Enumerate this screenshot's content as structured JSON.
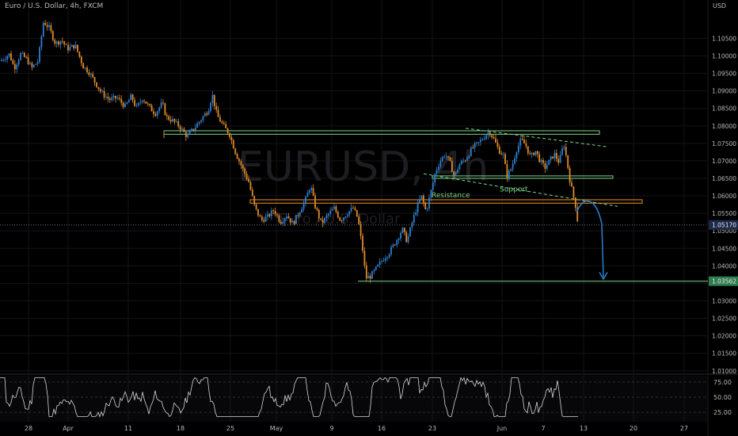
{
  "header": {
    "symbol_title": "Euro / U.S. Dollar, 4h, FXCM",
    "currency": "USD"
  },
  "chart_data": [
    {
      "type": "candlestick",
      "title": "Euro / U.S. Dollar, 4h, FXCM",
      "watermark": "EURUSD, 4h",
      "watermark_sub": "Euro / U.S. Dollar",
      "x_tick_labels": [
        "28",
        "Apr",
        "11",
        "18",
        "25",
        "May",
        "9",
        "16",
        "23",
        "Jun",
        "7",
        "13",
        "20",
        "27"
      ],
      "y_tick_labels": [
        "1.10500",
        "1.10000",
        "1.09500",
        "1.09000",
        "1.08500",
        "1.08000",
        "1.07500",
        "1.07000",
        "1.06500",
        "1.06000",
        "1.05500",
        "1.05000",
        "1.04500",
        "1.04000",
        "1.03500",
        "1.03000",
        "1.02500",
        "1.02000",
        "1.01500",
        "1.01000"
      ],
      "ylim": [
        1.0095,
        1.1103
      ],
      "up_color": "#2f7fd1",
      "down_color": "#e08b2a",
      "close_path": [
        [
          0,
          1.0985
        ],
        [
          12,
          1.1005
        ],
        [
          18,
          1.0965
        ],
        [
          26,
          1.1005
        ],
        [
          34,
          1.099
        ],
        [
          40,
          1.0965
        ],
        [
          48,
          1.0985
        ],
        [
          55,
          1.1098
        ],
        [
          62,
          1.108
        ],
        [
          70,
          1.1035
        ],
        [
          78,
          1.1045
        ],
        [
          85,
          1.102
        ],
        [
          95,
          1.103
        ],
        [
          105,
          1.097
        ],
        [
          112,
          1.0955
        ],
        [
          120,
          1.0925
        ],
        [
          128,
          1.0895
        ],
        [
          138,
          1.0875
        ],
        [
          148,
          1.088
        ],
        [
          158,
          1.0855
        ],
        [
          166,
          1.0885
        ],
        [
          172,
          1.085
        ],
        [
          180,
          1.088
        ],
        [
          188,
          1.0855
        ],
        [
          196,
          1.0835
        ],
        [
          205,
          1.0865
        ],
        [
          210,
          1.0825
        ],
        [
          218,
          1.0815
        ],
        [
          226,
          1.08
        ],
        [
          236,
          1.077
        ],
        [
          246,
          1.0795
        ],
        [
          256,
          1.0825
        ],
        [
          263,
          1.0845
        ],
        [
          268,
          1.089
        ],
        [
          274,
          1.083
        ],
        [
          282,
          1.08
        ],
        [
          290,
          1.0775
        ],
        [
          298,
          1.072
        ],
        [
          306,
          1.068
        ],
        [
          314,
          1.064
        ],
        [
          322,
          1.0565
        ],
        [
          330,
          1.053
        ],
        [
          338,
          1.054
        ],
        [
          346,
          1.056
        ],
        [
          354,
          1.0525
        ],
        [
          362,
          1.0545
        ],
        [
          370,
          1.052
        ],
        [
          378,
          1.0555
        ],
        [
          386,
          1.059
        ],
        [
          392,
          1.063
        ],
        [
          398,
          1.057
        ],
        [
          406,
          1.052
        ],
        [
          414,
          1.0545
        ],
        [
          422,
          1.0565
        ],
        [
          430,
          1.053
        ],
        [
          438,
          1.055
        ],
        [
          446,
          1.0565
        ],
        [
          452,
          1.0535
        ],
        [
          458,
          1.0445
        ],
        [
          462,
          1.0365
        ],
        [
          468,
          1.037
        ],
        [
          476,
          1.0395
        ],
        [
          484,
          1.042
        ],
        [
          492,
          1.044
        ],
        [
          500,
          1.047
        ],
        [
          508,
          1.0505
        ],
        [
          514,
          1.047
        ],
        [
          520,
          1.052
        ],
        [
          526,
          1.0565
        ],
        [
          532,
          1.06
        ],
        [
          538,
          1.0555
        ],
        [
          544,
          1.061
        ],
        [
          550,
          1.067
        ],
        [
          556,
          1.07
        ],
        [
          562,
          1.072
        ],
        [
          568,
          1.0695
        ],
        [
          574,
          1.0655
        ],
        [
          580,
          1.069
        ],
        [
          588,
          1.0705
        ],
        [
          596,
          1.0735
        ],
        [
          604,
          1.075
        ],
        [
          612,
          1.077
        ],
        [
          618,
          1.0785
        ],
        [
          624,
          1.076
        ],
        [
          630,
          1.073
        ],
        [
          636,
          1.0715
        ],
        [
          640,
          1.0655
        ],
        [
          646,
          1.068
        ],
        [
          652,
          1.073
        ],
        [
          658,
          1.076
        ],
        [
          664,
          1.0745
        ],
        [
          670,
          1.071
        ],
        [
          676,
          1.073
        ],
        [
          682,
          1.07
        ],
        [
          688,
          1.068
        ],
        [
          694,
          1.07
        ],
        [
          700,
          1.072
        ],
        [
          706,
          1.0695
        ],
        [
          712,
          1.075
        ],
        [
          716,
          1.07
        ],
        [
          720,
          1.064
        ],
        [
          724,
          1.06
        ],
        [
          727,
          1.057
        ],
        [
          730,
          1.0517
        ]
      ],
      "rsi_levels": [
        "75.00",
        "50.00",
        "25.00"
      ],
      "price_labels": {
        "current": "1.05170",
        "target": "1.03562"
      },
      "annotations": [
        {
          "text": "Resistance",
          "color": "#7dd68a"
        },
        {
          "text": "Support",
          "color": "#7dd68a"
        }
      ],
      "levels": [
        {
          "y1": 1.0786,
          "y2": 1.0776,
          "color": "#7dd68a"
        },
        {
          "y1": 1.0657,
          "y2": 1.065,
          "color": "#7dd68a"
        },
        {
          "y1": 1.0589,
          "y2": 1.0579,
          "color": "#e08b2a"
        },
        {
          "y": 1.03562,
          "color": "#7dd68a"
        }
      ],
      "trend_lines": [
        {
          "p1": [
            588,
            1.0793
          ],
          "p2": [
            768,
            1.074
          ],
          "color": "#7dd68a",
          "dashed": true
        },
        {
          "p1": [
            535,
            1.0663
          ],
          "p2": [
            780,
            1.057
          ],
          "color": "#7dd68a",
          "dashed": true
        }
      ],
      "projection": {
        "color": "#2f7fd1"
      },
      "grid": true
    }
  ]
}
